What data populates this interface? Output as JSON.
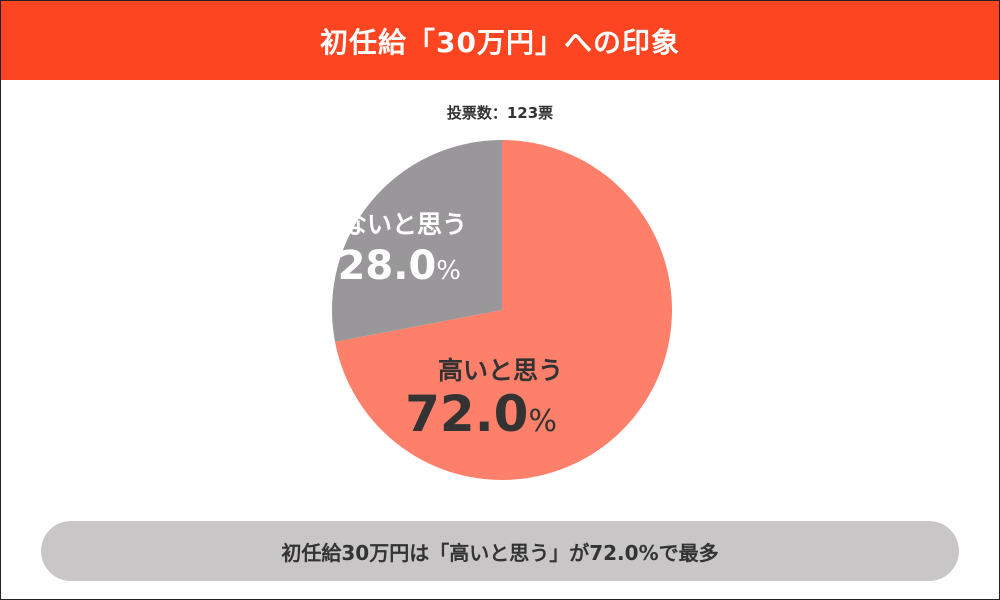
{
  "header": {
    "title": "初任給「30万円」への印象"
  },
  "vote_count": "投票数：123票",
  "footer": {
    "summary": "初任給30万円は「高いと思う」が72.0%で最多"
  },
  "colors": {
    "header_bg": "#fd4521",
    "slice_high": "#fe806b",
    "slice_not_high": "#9a979a",
    "footer_bg": "#c8c6c7"
  },
  "chart_data": {
    "type": "pie",
    "title": "初任給「30万円」への印象",
    "start_angle_deg": 0,
    "direction": "clockwise",
    "slices": [
      {
        "label": "高いと思う",
        "value": 72.0,
        "value_text": "72.0",
        "unit": "%",
        "color": "#fe806b",
        "text_color": "#333333"
      },
      {
        "label": "高くないと思う",
        "value": 28.0,
        "value_text": "28.0",
        "unit": "%",
        "color": "#9a979a",
        "text_color": "#ffffff"
      }
    ]
  }
}
